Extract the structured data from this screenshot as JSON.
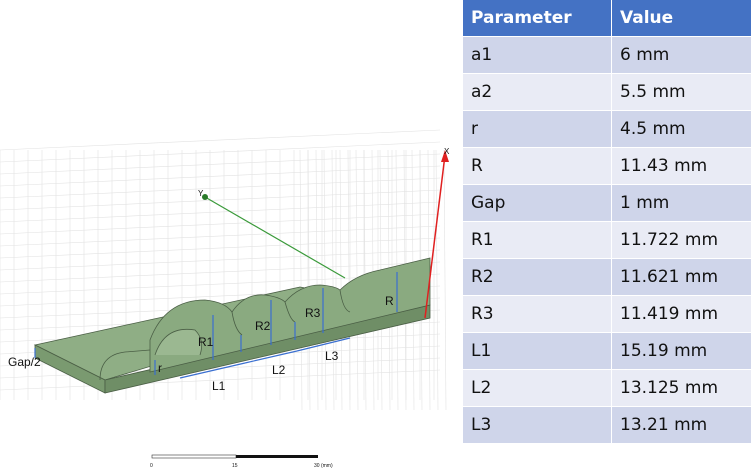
{
  "table": {
    "header": [
      "Parameter",
      "Value"
    ],
    "rows": [
      [
        "a1",
        "6 mm"
      ],
      [
        "a2",
        "5.5 mm"
      ],
      [
        "r",
        "4.5 mm"
      ],
      [
        "R",
        "11.43 mm"
      ],
      [
        "Gap",
        "1 mm"
      ],
      [
        "R1",
        "11.722 mm"
      ],
      [
        "R2",
        "11.621 mm"
      ],
      [
        "R3",
        "11.419 mm"
      ],
      [
        "L1",
        "15.19 mm"
      ],
      [
        "L2",
        "13.125 mm"
      ],
      [
        "L3",
        "13.21 mm"
      ]
    ]
  },
  "diagram": {
    "labels": {
      "gap": "Gap/2",
      "r": "r",
      "R1": "R1",
      "R2": "R2",
      "R3": "R3",
      "R": "R",
      "L1": "L1",
      "L2": "L2",
      "L3": "L3"
    },
    "axes": {
      "x": "X",
      "y": "Y"
    },
    "scale": [
      "0",
      "15",
      "30 (mm)"
    ]
  }
}
